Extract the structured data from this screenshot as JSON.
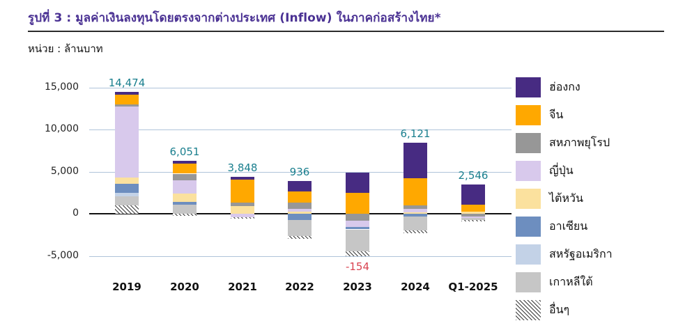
{
  "title": "รูปที่ 3 : มูลค่าเงินลงทุนโดยตรงจากต่างประเทศ (Inflow) ในภาคก่อสร้างไทย*",
  "unit_label": "หน่วย : ล้านบาท",
  "colors": {
    "title": "#4A3193",
    "gridline": "#AFC3D9",
    "zero_line": "#111111",
    "total_label_positive": "#1A7F8E",
    "total_label_negative": "#D94350"
  },
  "chart_data": {
    "type": "bar",
    "stacked": true,
    "grid": true,
    "legend_position": "right",
    "categories": [
      "2019",
      "2020",
      "2021",
      "2022",
      "2023",
      "2024",
      "Q1-2025"
    ],
    "totals": [
      14474,
      6051,
      3848,
      936,
      -154,
      6121,
      2546
    ],
    "total_labels": [
      "14,474",
      "6,051",
      "3,848",
      "936",
      "-154",
      "6,121",
      "2,546"
    ],
    "yticks": [
      15000,
      10000,
      5000,
      0,
      -5000
    ],
    "ytick_labels": [
      "15,000",
      "10,000",
      "5,000",
      "0",
      "-5,000"
    ],
    "ylim": [
      -7000,
      16500
    ],
    "series": [
      {
        "name": "ฮ่องกง",
        "color": "#472B82",
        "values": [
          320,
          350,
          390,
          1280,
          2400,
          4200,
          2350
        ]
      },
      {
        "name": "จีน",
        "color": "#FFA800",
        "values": [
          1160,
          1185,
          2700,
          1300,
          2500,
          3200,
          850
        ]
      },
      {
        "name": "สหภาพยุโรป",
        "color": "#979797",
        "values": [
          270,
          810,
          420,
          760,
          -850,
          450,
          -300
        ]
      },
      {
        "name": "ญี่ปุ่น",
        "color": "#D8C9EC",
        "values": [
          8430,
          1510,
          -400,
          280,
          -750,
          400,
          -200
        ]
      },
      {
        "name": "ไต้หวัน",
        "color": "#FBE19E",
        "values": [
          730,
          1000,
          910,
          280,
          0,
          150,
          240
        ]
      },
      {
        "name": "อาเซียน",
        "color": "#6D8EBF",
        "values": [
          1070,
          350,
          0,
          -700,
          -260,
          -300,
          0
        ]
      },
      {
        "name": "สหรัฐอเมริกา",
        "color": "#C3D2E7",
        "values": [
          460,
          0,
          0,
          0,
          0,
          0,
          0
        ]
      },
      {
        "name": "เกาหลีใต้",
        "color": "#C6C6C6",
        "values": [
          1070,
          1080,
          0,
          -1900,
          -2600,
          -1709,
          -250
        ]
      },
      {
        "name": "อื่นๆ",
        "color": "#ffffff",
        "pattern": "diagonal-hatch",
        "values": [
          964,
          -234,
          -172,
          -364,
          -594,
          -270,
          -144
        ]
      }
    ]
  }
}
